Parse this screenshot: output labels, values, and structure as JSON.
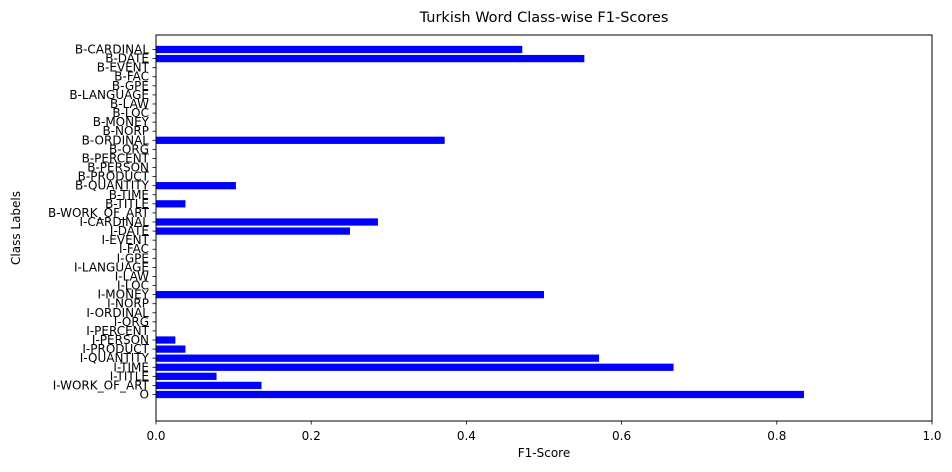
{
  "chart_data": {
    "type": "bar",
    "orientation": "horizontal",
    "title": "Turkish Word Class-wise F1-Scores",
    "xlabel": "F1-Score",
    "ylabel": "Class Labels",
    "xlim": [
      0,
      1.0
    ],
    "xticks": [
      "0.0",
      "0.2",
      "0.4",
      "0.6",
      "0.8",
      "1.0"
    ],
    "grid": false,
    "bar_color": "#0000ff",
    "categories": [
      "O",
      "I-WORK_OF_ART",
      "I-TITLE",
      "I-TIME",
      "I-QUANTITY",
      "I-PRODUCT",
      "I-PERSON",
      "I-PERCENT",
      "I-ORG",
      "I-ORDINAL",
      "I-NORP",
      "I-MONEY",
      "I-LOC",
      "I-LAW",
      "I-LANGUAGE",
      "I-GPE",
      "I-FAC",
      "I-EVENT",
      "I-DATE",
      "I-CARDINAL",
      "B-WORK_OF_ART",
      "B-TITLE",
      "B-TIME",
      "B-QUANTITY",
      "B-PRODUCT",
      "B-PERSON",
      "B-PERCENT",
      "B-ORG",
      "B-ORDINAL",
      "B-NORP",
      "B-MONEY",
      "B-LOC",
      "B-LAW",
      "B-LANGUAGE",
      "B-GPE",
      "B-FAC",
      "B-EVENT",
      "B-DATE",
      "B-CARDINAL"
    ],
    "values": [
      0.835,
      0.136,
      0.078,
      0.667,
      0.571,
      0.038,
      0.025,
      0.0,
      0.0,
      0.0,
      0.0,
      0.5,
      0.0,
      0.0,
      0.0,
      0.0,
      0.0,
      0.0,
      0.25,
      0.286,
      0.0,
      0.038,
      0.0,
      0.103,
      0.0,
      0.0,
      0.0,
      0.0,
      0.372,
      0.0,
      0.0,
      0.0,
      0.0,
      0.0,
      0.0,
      0.0,
      0.0,
      0.552,
      0.472
    ]
  }
}
